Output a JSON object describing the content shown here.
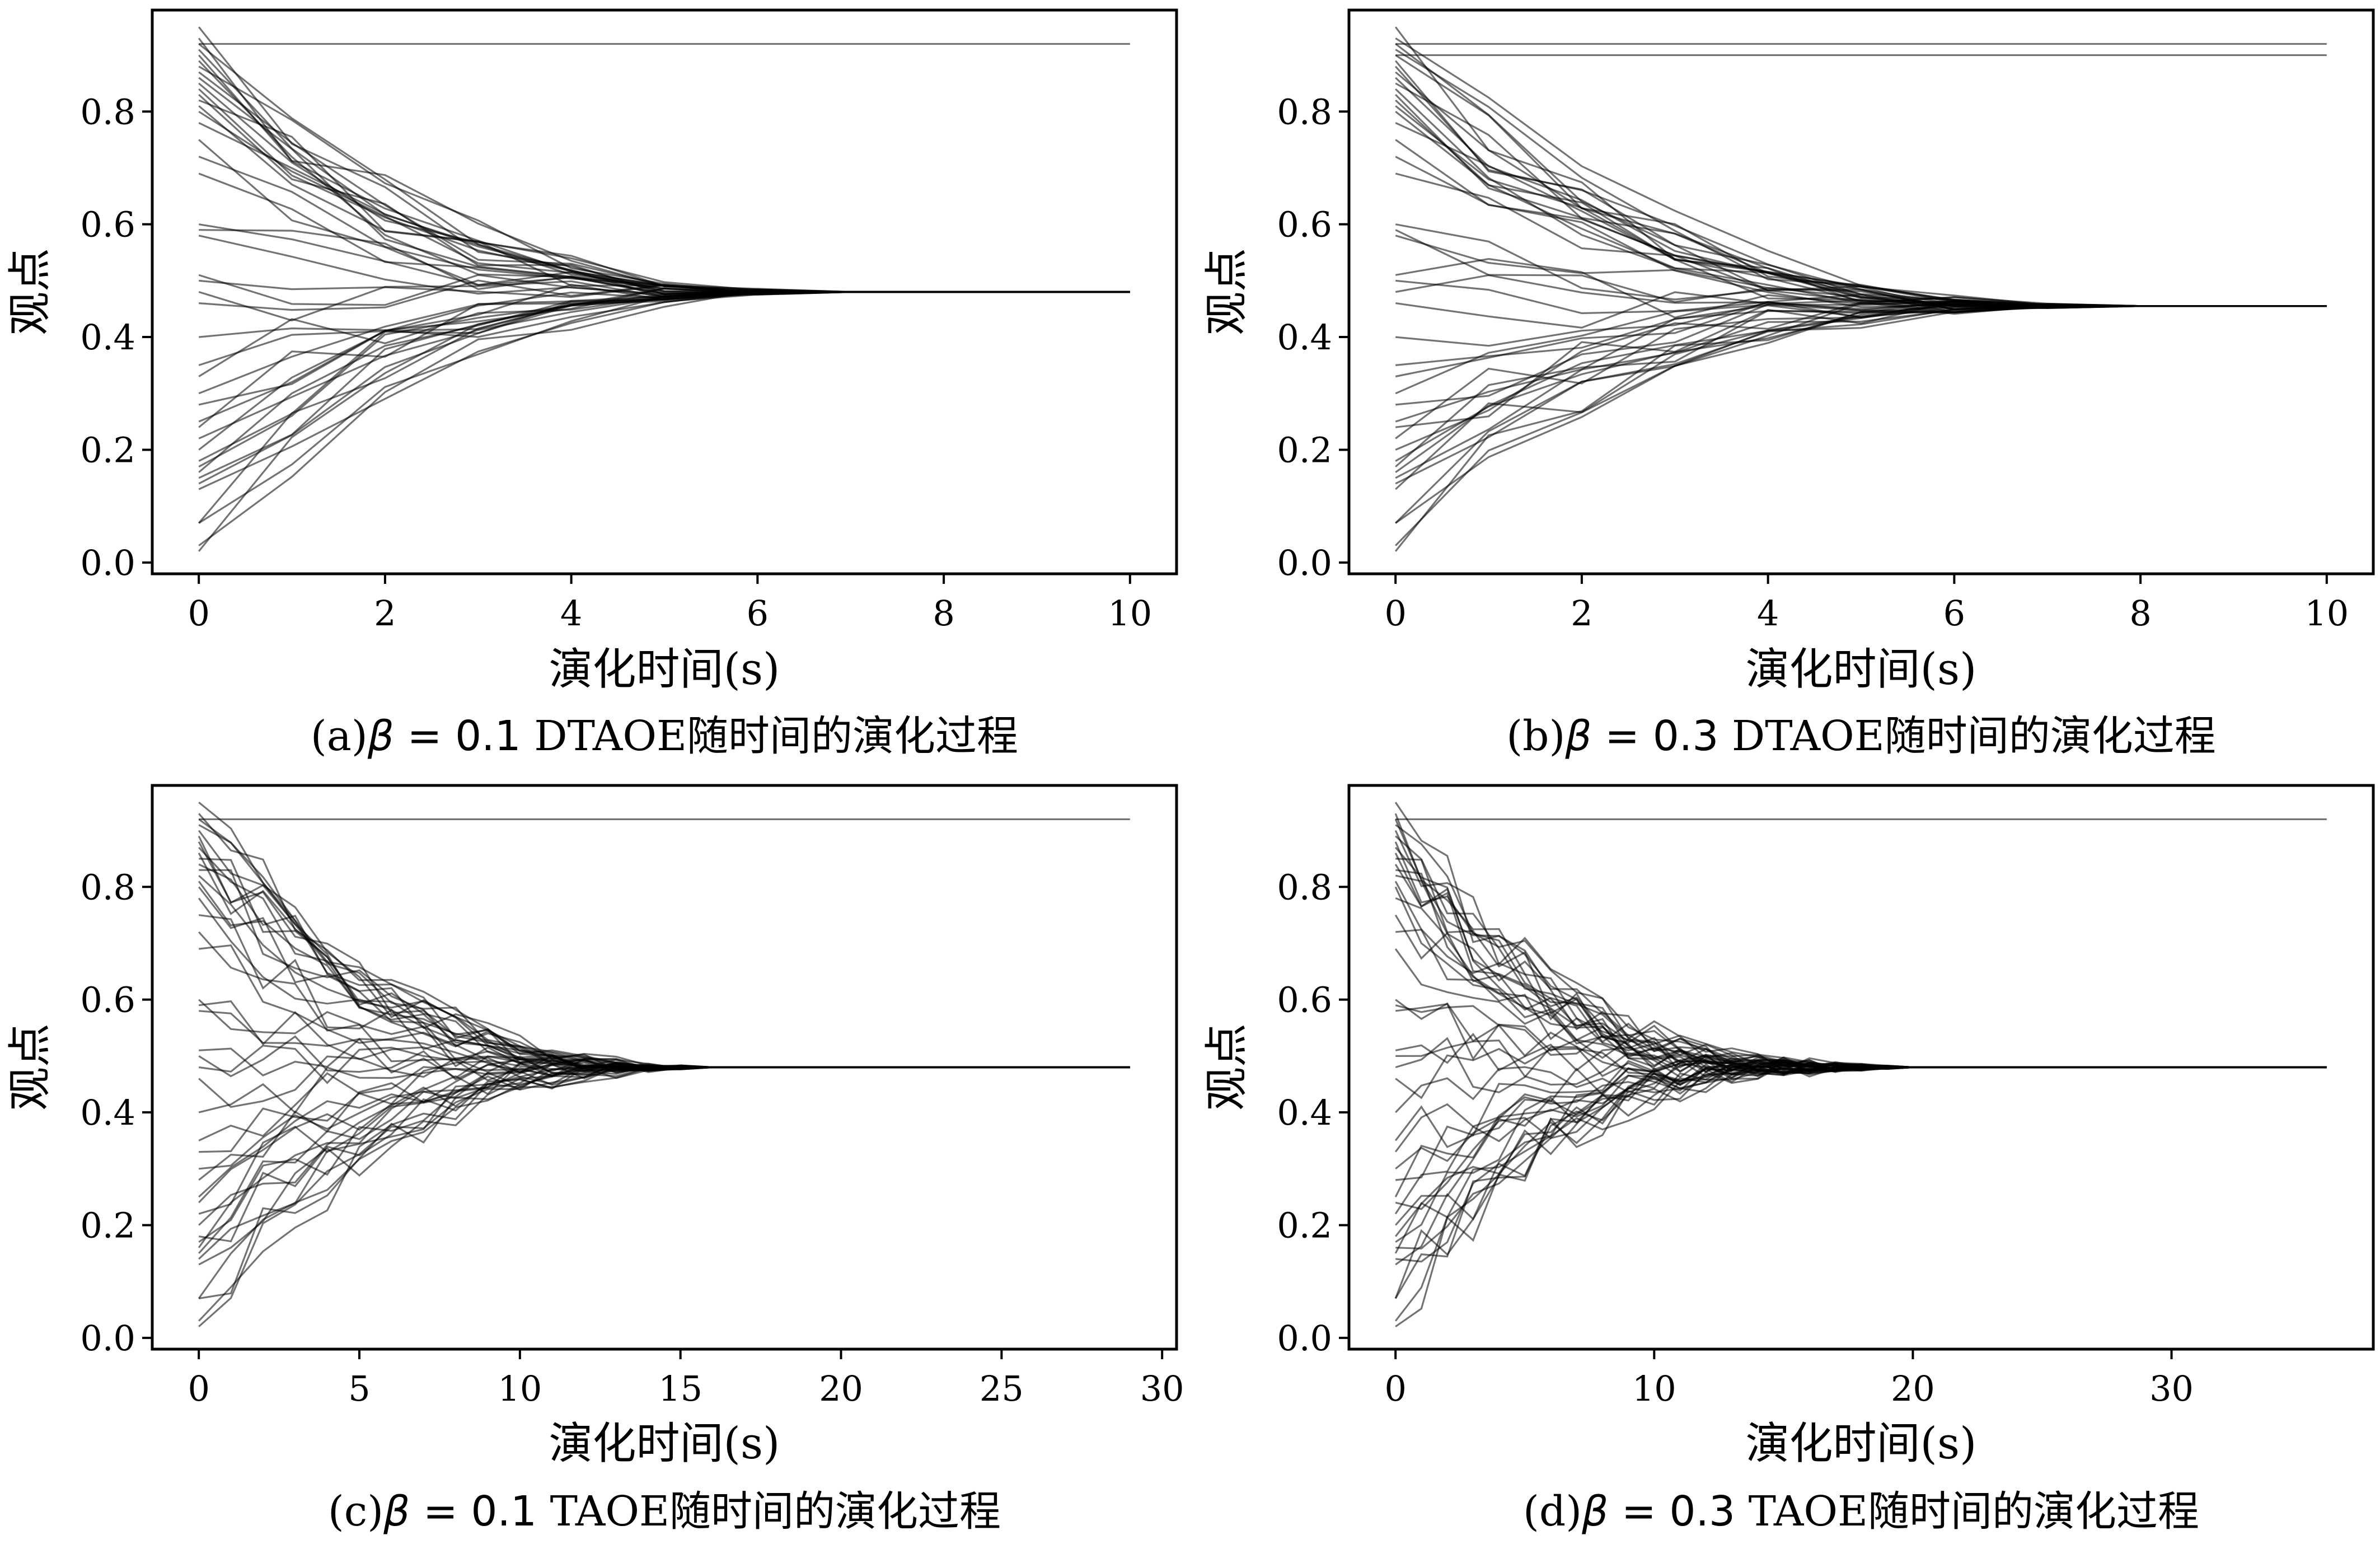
{
  "chart_data": [
    {
      "type": "line",
      "panel": "a",
      "caption": {
        "prefix": "(a)",
        "beta_symbol": "β",
        "beta_eq": " = ",
        "beta_value": "0.1",
        "suffix": " DTAOE随时间的演化过程"
      },
      "xlabel": "演化时间(s)",
      "ylabel": "观点",
      "xlim": [
        -0.5,
        10.5
      ],
      "ylim": [
        -0.02,
        0.98
      ],
      "xticks": [
        0,
        2,
        4,
        6,
        8,
        10
      ],
      "xtick_labels": [
        "0",
        "2",
        "4",
        "6",
        "8",
        "10"
      ],
      "yticks": [
        0.0,
        0.2,
        0.4,
        0.6,
        0.8
      ],
      "ytick_labels": [
        "0.0",
        "0.2",
        "0.4",
        "0.6",
        "0.8"
      ],
      "consensus": 0.48,
      "t_end": 10,
      "converge_time": 6.5,
      "spread": 1.0,
      "line_color": "#000000",
      "line_opacity": 0.55,
      "stubborn": [
        0.92
      ],
      "initial_opinions": [
        0.95,
        0.93,
        0.92,
        0.91,
        0.9,
        0.89,
        0.88,
        0.87,
        0.86,
        0.85,
        0.84,
        0.83,
        0.82,
        0.81,
        0.8,
        0.78,
        0.75,
        0.72,
        0.69,
        0.6,
        0.59,
        0.58,
        0.51,
        0.5,
        0.48,
        0.46,
        0.4,
        0.35,
        0.33,
        0.3,
        0.28,
        0.25,
        0.24,
        0.22,
        0.2,
        0.18,
        0.17,
        0.16,
        0.15,
        0.14,
        0.13,
        0.07,
        0.07,
        0.03,
        0.02
      ]
    },
    {
      "type": "line",
      "panel": "b",
      "caption": {
        "prefix": "(b)",
        "beta_symbol": "β",
        "beta_eq": " = ",
        "beta_value": "0.3",
        "suffix": " DTAOE随时间的演化过程"
      },
      "xlabel": "演化时间(s)",
      "ylabel": "观点",
      "xlim": [
        -0.5,
        10.5
      ],
      "ylim": [
        -0.02,
        0.98
      ],
      "xticks": [
        0,
        2,
        4,
        6,
        8,
        10
      ],
      "xtick_labels": [
        "0",
        "2",
        "4",
        "6",
        "8",
        "10"
      ],
      "yticks": [
        0.0,
        0.2,
        0.4,
        0.6,
        0.8
      ],
      "ytick_labels": [
        "0.0",
        "0.2",
        "0.4",
        "0.6",
        "0.8"
      ],
      "consensus": 0.455,
      "t_end": 10,
      "converge_time": 7.5,
      "spread": 1.0,
      "line_color": "#000000",
      "line_opacity": 0.55,
      "stubborn": [
        0.92,
        0.9
      ],
      "initial_opinions": [
        0.95,
        0.93,
        0.92,
        0.91,
        0.9,
        0.89,
        0.88,
        0.87,
        0.86,
        0.85,
        0.84,
        0.83,
        0.82,
        0.81,
        0.8,
        0.78,
        0.75,
        0.72,
        0.69,
        0.6,
        0.59,
        0.58,
        0.51,
        0.5,
        0.48,
        0.46,
        0.4,
        0.35,
        0.33,
        0.3,
        0.28,
        0.25,
        0.24,
        0.22,
        0.2,
        0.18,
        0.17,
        0.16,
        0.15,
        0.14,
        0.13,
        0.07,
        0.07,
        0.03,
        0.02
      ]
    },
    {
      "type": "line",
      "panel": "c",
      "caption": {
        "prefix": "(c)",
        "beta_symbol": "β",
        "beta_eq": " = ",
        "beta_value": "0.1",
        "suffix": " TAOE随时间的演化过程"
      },
      "xlabel": "演化时间(s)",
      "ylabel": "观点",
      "xlim": [
        -1.45,
        30.45
      ],
      "ylim": [
        -0.02,
        0.98
      ],
      "xticks": [
        0,
        5,
        10,
        15,
        20,
        25,
        30
      ],
      "xtick_labels": [
        "0",
        "5",
        "10",
        "15",
        "20",
        "25",
        "30"
      ],
      "yticks": [
        0.0,
        0.2,
        0.4,
        0.6,
        0.8
      ],
      "ytick_labels": [
        "0.0",
        "0.2",
        "0.4",
        "0.6",
        "0.8"
      ],
      "consensus": 0.48,
      "t_end": 29,
      "converge_time": 16,
      "spread": 1.0,
      "line_color": "#000000",
      "line_opacity": 0.55,
      "stubborn": [
        0.92
      ],
      "initial_opinions": [
        0.95,
        0.93,
        0.92,
        0.91,
        0.9,
        0.89,
        0.88,
        0.87,
        0.86,
        0.85,
        0.84,
        0.83,
        0.82,
        0.81,
        0.8,
        0.78,
        0.75,
        0.72,
        0.69,
        0.6,
        0.59,
        0.58,
        0.51,
        0.5,
        0.48,
        0.46,
        0.4,
        0.35,
        0.33,
        0.3,
        0.28,
        0.25,
        0.24,
        0.22,
        0.2,
        0.18,
        0.17,
        0.16,
        0.15,
        0.14,
        0.13,
        0.07,
        0.07,
        0.03,
        0.02
      ]
    },
    {
      "type": "line",
      "panel": "d",
      "caption": {
        "prefix": "(d)",
        "beta_symbol": "β",
        "beta_eq": " = ",
        "beta_value": "0.3",
        "suffix": " TAOE随时间的演化过程"
      },
      "xlabel": "演化时间(s)",
      "ylabel": "观点",
      "xlim": [
        -1.8,
        37.8
      ],
      "ylim": [
        -0.02,
        0.98
      ],
      "xticks": [
        0,
        10,
        20,
        30
      ],
      "xtick_labels": [
        "0",
        "10",
        "20",
        "30"
      ],
      "yticks": [
        0.0,
        0.2,
        0.4,
        0.6,
        0.8
      ],
      "ytick_labels": [
        "0.0",
        "0.2",
        "0.4",
        "0.6",
        "0.8"
      ],
      "consensus": 0.48,
      "t_end": 36,
      "converge_time": 20,
      "spread": 1.5,
      "line_color": "#000000",
      "line_opacity": 0.55,
      "stubborn": [
        0.92
      ],
      "initial_opinions": [
        0.95,
        0.93,
        0.92,
        0.91,
        0.9,
        0.89,
        0.88,
        0.87,
        0.86,
        0.85,
        0.84,
        0.83,
        0.82,
        0.81,
        0.8,
        0.78,
        0.75,
        0.72,
        0.69,
        0.6,
        0.59,
        0.58,
        0.51,
        0.5,
        0.48,
        0.46,
        0.4,
        0.35,
        0.33,
        0.3,
        0.28,
        0.25,
        0.24,
        0.22,
        0.2,
        0.18,
        0.17,
        0.16,
        0.15,
        0.14,
        0.13,
        0.07,
        0.07,
        0.03,
        0.02
      ]
    }
  ]
}
